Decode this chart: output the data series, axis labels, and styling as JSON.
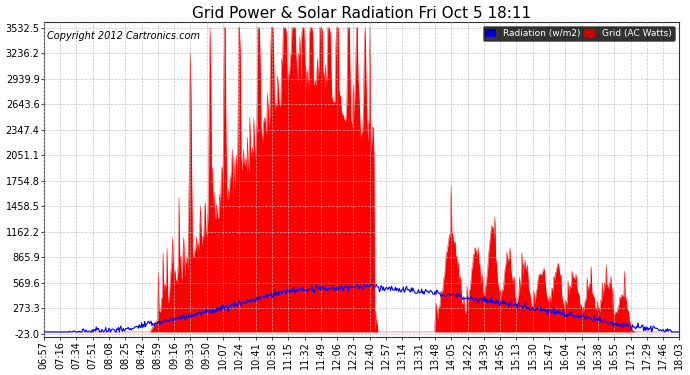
{
  "title": "Grid Power & Solar Radiation Fri Oct 5 18:11",
  "copyright": "Copyright 2012 Cartronics.com",
  "bg_color": "#ffffff",
  "plot_bg_color": "#ffffff",
  "grid_color": "#aaaaaa",
  "legend_labels": [
    "Radiation (w/m2)",
    "Grid (AC Watts)"
  ],
  "legend_colors_bg": [
    "#0000cc",
    "#cc0000"
  ],
  "y_ticks": [
    -23.0,
    273.3,
    569.6,
    865.9,
    1162.2,
    1458.5,
    1754.8,
    2051.1,
    2347.4,
    2643.6,
    2939.9,
    3236.2,
    3532.5
  ],
  "y_min": -23.0,
  "y_max": 3532.5,
  "x_labels": [
    "06:57",
    "07:16",
    "07:34",
    "07:51",
    "08:08",
    "08:25",
    "08:42",
    "08:59",
    "09:16",
    "09:33",
    "09:50",
    "10:07",
    "10:24",
    "10:41",
    "10:58",
    "11:15",
    "11:32",
    "11:49",
    "12:06",
    "12:23",
    "12:40",
    "12:57",
    "13:14",
    "13:31",
    "13:48",
    "14:05",
    "14:22",
    "14:39",
    "14:56",
    "15:13",
    "15:30",
    "15:47",
    "16:04",
    "16:21",
    "16:38",
    "16:55",
    "17:12",
    "17:29",
    "17:46",
    "18:03"
  ],
  "title_fontsize": 11,
  "axis_fontsize": 7,
  "copyright_fontsize": 7
}
